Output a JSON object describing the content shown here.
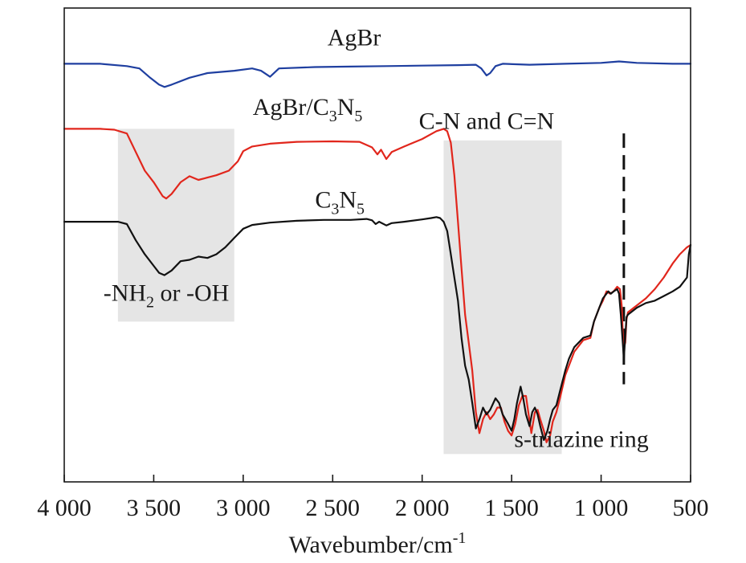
{
  "chart_data": {
    "type": "line",
    "xlabel": "Wavebumber/cm",
    "xlabel_sup": "-1",
    "xlim": [
      4000,
      500
    ],
    "x_reversed": true,
    "xticks": [
      {
        "value": 4000,
        "label": "4 000"
      },
      {
        "value": 3500,
        "label": "3 500"
      },
      {
        "value": 3000,
        "label": "3 000"
      },
      {
        "value": 2500,
        "label": "2 500"
      },
      {
        "value": 2000,
        "label": "2 000"
      },
      {
        "value": 1500,
        "label": "1 500"
      },
      {
        "value": 1000,
        "label": "1 000"
      },
      {
        "value": 500,
        "label": "500"
      }
    ],
    "yticks_shown": false,
    "grid": false,
    "series": [
      {
        "name": "AgBr",
        "color": "#1f3fa0",
        "points": [
          [
            4000,
            8.4
          ],
          [
            3800,
            8.4
          ],
          [
            3650,
            8.35
          ],
          [
            3580,
            8.3
          ],
          [
            3520,
            8.1
          ],
          [
            3470,
            7.95
          ],
          [
            3440,
            7.9
          ],
          [
            3400,
            7.95
          ],
          [
            3300,
            8.1
          ],
          [
            3200,
            8.2
          ],
          [
            3050,
            8.25
          ],
          [
            2950,
            8.3
          ],
          [
            2900,
            8.25
          ],
          [
            2850,
            8.12
          ],
          [
            2800,
            8.3
          ],
          [
            2600,
            8.33
          ],
          [
            2400,
            8.34
          ],
          [
            2200,
            8.35
          ],
          [
            2000,
            8.36
          ],
          [
            1800,
            8.37
          ],
          [
            1700,
            8.38
          ],
          [
            1670,
            8.3
          ],
          [
            1640,
            8.15
          ],
          [
            1620,
            8.2
          ],
          [
            1590,
            8.35
          ],
          [
            1550,
            8.4
          ],
          [
            1400,
            8.38
          ],
          [
            1200,
            8.4
          ],
          [
            1000,
            8.42
          ],
          [
            900,
            8.45
          ],
          [
            800,
            8.42
          ],
          [
            600,
            8.4
          ],
          [
            500,
            8.4
          ]
        ]
      },
      {
        "name": "AgBr/C3N5",
        "color": "#e1261c",
        "points": [
          [
            4000,
            7.0
          ],
          [
            3800,
            7.0
          ],
          [
            3720,
            6.98
          ],
          [
            3650,
            6.9
          ],
          [
            3600,
            6.5
          ],
          [
            3550,
            6.1
          ],
          [
            3500,
            5.85
          ],
          [
            3450,
            5.55
          ],
          [
            3430,
            5.5
          ],
          [
            3400,
            5.6
          ],
          [
            3350,
            5.85
          ],
          [
            3300,
            5.98
          ],
          [
            3250,
            5.9
          ],
          [
            3200,
            5.95
          ],
          [
            3150,
            6.0
          ],
          [
            3080,
            6.1
          ],
          [
            3030,
            6.3
          ],
          [
            3000,
            6.52
          ],
          [
            2950,
            6.62
          ],
          [
            2850,
            6.68
          ],
          [
            2700,
            6.72
          ],
          [
            2500,
            6.73
          ],
          [
            2350,
            6.72
          ],
          [
            2280,
            6.6
          ],
          [
            2250,
            6.45
          ],
          [
            2230,
            6.55
          ],
          [
            2200,
            6.35
          ],
          [
            2170,
            6.5
          ],
          [
            2100,
            6.62
          ],
          [
            2000,
            6.78
          ],
          [
            1920,
            6.95
          ],
          [
            1880,
            7.0
          ],
          [
            1860,
            6.95
          ],
          [
            1840,
            6.7
          ],
          [
            1820,
            6.0
          ],
          [
            1800,
            5.0
          ],
          [
            1780,
            4.0
          ],
          [
            1760,
            3.0
          ],
          [
            1740,
            2.4
          ],
          [
            1720,
            1.8
          ],
          [
            1700,
            0.9
          ],
          [
            1680,
            0.45
          ],
          [
            1660,
            0.75
          ],
          [
            1640,
            0.9
          ],
          [
            1620,
            0.75
          ],
          [
            1600,
            0.85
          ],
          [
            1580,
            1.0
          ],
          [
            1560,
            1.0
          ],
          [
            1540,
            0.7
          ],
          [
            1520,
            0.5
          ],
          [
            1500,
            0.4
          ],
          [
            1480,
            0.65
          ],
          [
            1460,
            1.05
          ],
          [
            1440,
            1.25
          ],
          [
            1420,
            1.25
          ],
          [
            1405,
            0.85
          ],
          [
            1390,
            0.45
          ],
          [
            1370,
            0.9
          ],
          [
            1355,
            0.95
          ],
          [
            1340,
            0.75
          ],
          [
            1320,
            0.5
          ],
          [
            1305,
            0.25
          ],
          [
            1285,
            0.4
          ],
          [
            1270,
            0.7
          ],
          [
            1250,
            0.9
          ],
          [
            1230,
            1.2
          ],
          [
            1200,
            1.7
          ],
          [
            1180,
            1.9
          ],
          [
            1150,
            2.2
          ],
          [
            1100,
            2.45
          ],
          [
            1060,
            2.5
          ],
          [
            1040,
            2.85
          ],
          [
            1010,
            3.15
          ],
          [
            990,
            3.3
          ],
          [
            970,
            3.5
          ],
          [
            950,
            3.45
          ],
          [
            930,
            3.5
          ],
          [
            910,
            3.6
          ],
          [
            895,
            3.55
          ],
          [
            885,
            3.2
          ],
          [
            875,
            2.25
          ],
          [
            865,
            2.4
          ],
          [
            858,
            2.9
          ],
          [
            850,
            3.05
          ],
          [
            800,
            3.2
          ],
          [
            750,
            3.35
          ],
          [
            700,
            3.55
          ],
          [
            650,
            3.8
          ],
          [
            600,
            4.1
          ],
          [
            560,
            4.3
          ],
          [
            520,
            4.45
          ],
          [
            500,
            4.5
          ]
        ]
      },
      {
        "name": "C3N5",
        "color": "#111111",
        "points": [
          [
            4000,
            5.0
          ],
          [
            3850,
            5.0
          ],
          [
            3700,
            5.0
          ],
          [
            3650,
            4.95
          ],
          [
            3600,
            4.6
          ],
          [
            3550,
            4.3
          ],
          [
            3500,
            4.05
          ],
          [
            3470,
            3.9
          ],
          [
            3440,
            3.85
          ],
          [
            3400,
            3.95
          ],
          [
            3350,
            4.15
          ],
          [
            3300,
            4.18
          ],
          [
            3250,
            4.25
          ],
          [
            3200,
            4.22
          ],
          [
            3150,
            4.3
          ],
          [
            3100,
            4.45
          ],
          [
            3050,
            4.65
          ],
          [
            3000,
            4.85
          ],
          [
            2950,
            4.93
          ],
          [
            2850,
            4.98
          ],
          [
            2700,
            5.02
          ],
          [
            2550,
            5.04
          ],
          [
            2400,
            5.04
          ],
          [
            2310,
            5.06
          ],
          [
            2280,
            5.03
          ],
          [
            2260,
            4.95
          ],
          [
            2240,
            5.0
          ],
          [
            2200,
            4.92
          ],
          [
            2170,
            4.97
          ],
          [
            2100,
            5.0
          ],
          [
            2000,
            5.05
          ],
          [
            1950,
            5.08
          ],
          [
            1920,
            5.1
          ],
          [
            1900,
            5.08
          ],
          [
            1880,
            5.0
          ],
          [
            1860,
            4.8
          ],
          [
            1840,
            4.3
          ],
          [
            1820,
            3.8
          ],
          [
            1800,
            3.3
          ],
          [
            1780,
            2.5
          ],
          [
            1760,
            1.9
          ],
          [
            1740,
            1.6
          ],
          [
            1720,
            1.1
          ],
          [
            1700,
            0.55
          ],
          [
            1680,
            0.75
          ],
          [
            1660,
            1.0
          ],
          [
            1640,
            0.85
          ],
          [
            1620,
            0.95
          ],
          [
            1590,
            1.2
          ],
          [
            1570,
            1.1
          ],
          [
            1550,
            0.85
          ],
          [
            1520,
            0.65
          ],
          [
            1500,
            0.5
          ],
          [
            1485,
            0.75
          ],
          [
            1470,
            1.1
          ],
          [
            1450,
            1.45
          ],
          [
            1435,
            1.2
          ],
          [
            1420,
            0.85
          ],
          [
            1400,
            0.6
          ],
          [
            1385,
            0.9
          ],
          [
            1370,
            1.0
          ],
          [
            1355,
            0.85
          ],
          [
            1340,
            0.6
          ],
          [
            1320,
            0.3
          ],
          [
            1300,
            0.5
          ],
          [
            1285,
            0.75
          ],
          [
            1270,
            0.95
          ],
          [
            1250,
            1.05
          ],
          [
            1230,
            1.35
          ],
          [
            1200,
            1.8
          ],
          [
            1180,
            2.05
          ],
          [
            1150,
            2.3
          ],
          [
            1100,
            2.5
          ],
          [
            1060,
            2.55
          ],
          [
            1040,
            2.85
          ],
          [
            1010,
            3.15
          ],
          [
            990,
            3.35
          ],
          [
            960,
            3.5
          ],
          [
            945,
            3.45
          ],
          [
            930,
            3.5
          ],
          [
            910,
            3.55
          ],
          [
            900,
            3.45
          ],
          [
            890,
            3.0
          ],
          [
            880,
            2.45
          ],
          [
            873,
            2.05
          ],
          [
            865,
            2.55
          ],
          [
            858,
            2.95
          ],
          [
            850,
            3.0
          ],
          [
            800,
            3.15
          ],
          [
            750,
            3.25
          ],
          [
            700,
            3.3
          ],
          [
            650,
            3.4
          ],
          [
            600,
            3.5
          ],
          [
            560,
            3.6
          ],
          [
            520,
            3.8
          ],
          [
            510,
            4.3
          ],
          [
            500,
            4.5
          ]
        ]
      }
    ],
    "shaded_regions": [
      {
        "x": [
          3700,
          3050
        ],
        "y": [
          2.85,
          7.0
        ],
        "color": "#e5e5e5"
      },
      {
        "x": [
          1880,
          1220
        ],
        "y": [
          0.0,
          6.75
        ],
        "color": "#e5e5e5"
      }
    ],
    "dashed_lines": [
      {
        "x": 873,
        "y": [
          1.5,
          6.9
        ],
        "color": "#111111"
      }
    ],
    "annotations": [
      {
        "id": "agbr-label",
        "text": "AgBr",
        "x": 2380,
        "y": 8.8
      },
      {
        "id": "agbr-c3n5-label",
        "text": "AgBr/C",
        "sub1": "3",
        "mid": "N",
        "sub2": "5",
        "x": 2640,
        "y": 7.3
      },
      {
        "id": "cn-label",
        "text": "C-N and C=N",
        "x": 1640,
        "y": 7.0
      },
      {
        "id": "c3n5-label",
        "text": "C",
        "sub1": "3",
        "mid": "N",
        "sub2": "5",
        "x": 2460,
        "y": 5.3
      },
      {
        "id": "nh2-label",
        "text": "-NH",
        "sub1": "2",
        "mid": " or -OH",
        "x": 3430,
        "y": 3.3
      },
      {
        "id": "triazine-label",
        "text": "s-triazine ring",
        "x": 1110,
        "y": 0.15
      }
    ],
    "ylim": [
      -0.6,
      9.6
    ]
  }
}
